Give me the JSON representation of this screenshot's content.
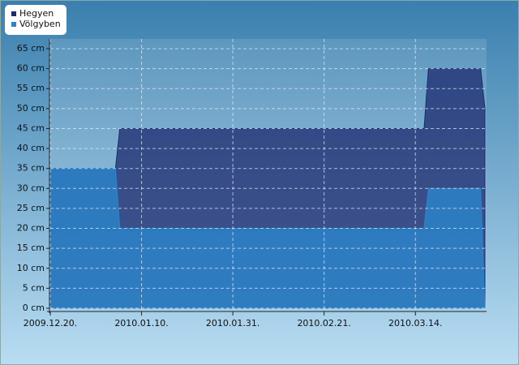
{
  "chart_data": {
    "type": "area",
    "x": [
      "2009.12.20.",
      "2010.01.04.",
      "2010.01.05.",
      "2010.03.16.",
      "2010.03.17.",
      "2010.03.29.",
      "2010.03.30."
    ],
    "series": [
      {
        "name": "Hegyen",
        "color": "#1c2a6e",
        "values": [
          35,
          35,
          45,
          45,
          60,
          60,
          50
        ]
      },
      {
        "name": "Völgyben",
        "color": "#2a86cc",
        "values": [
          35,
          35,
          20,
          20,
          30,
          30,
          0
        ]
      }
    ],
    "xlim": [
      "2009.12.20.",
      "2010.03.30."
    ],
    "xticks": [
      "2009.12.20.",
      "2010.01.10.",
      "2010.01.31.",
      "2010.02.21.",
      "2010.03.14."
    ],
    "ylim": [
      0,
      65
    ],
    "yticks": [
      {
        "value": 0,
        "label": "0 cm"
      },
      {
        "value": 5,
        "label": "5 cm"
      },
      {
        "value": 10,
        "label": "10 cm"
      },
      {
        "value": 15,
        "label": "15 cm"
      },
      {
        "value": 20,
        "label": "20 cm"
      },
      {
        "value": 25,
        "label": "25 cm"
      },
      {
        "value": 30,
        "label": "30 cm"
      },
      {
        "value": 35,
        "label": "35 cm"
      },
      {
        "value": 40,
        "label": "40 cm"
      },
      {
        "value": 45,
        "label": "45 cm"
      },
      {
        "value": 50,
        "label": "50 cm"
      },
      {
        "value": 55,
        "label": "55 cm"
      },
      {
        "value": 60,
        "label": "60 cm"
      },
      {
        "value": 65,
        "label": "65 cm"
      }
    ],
    "grid": true,
    "legend": "top-left"
  }
}
